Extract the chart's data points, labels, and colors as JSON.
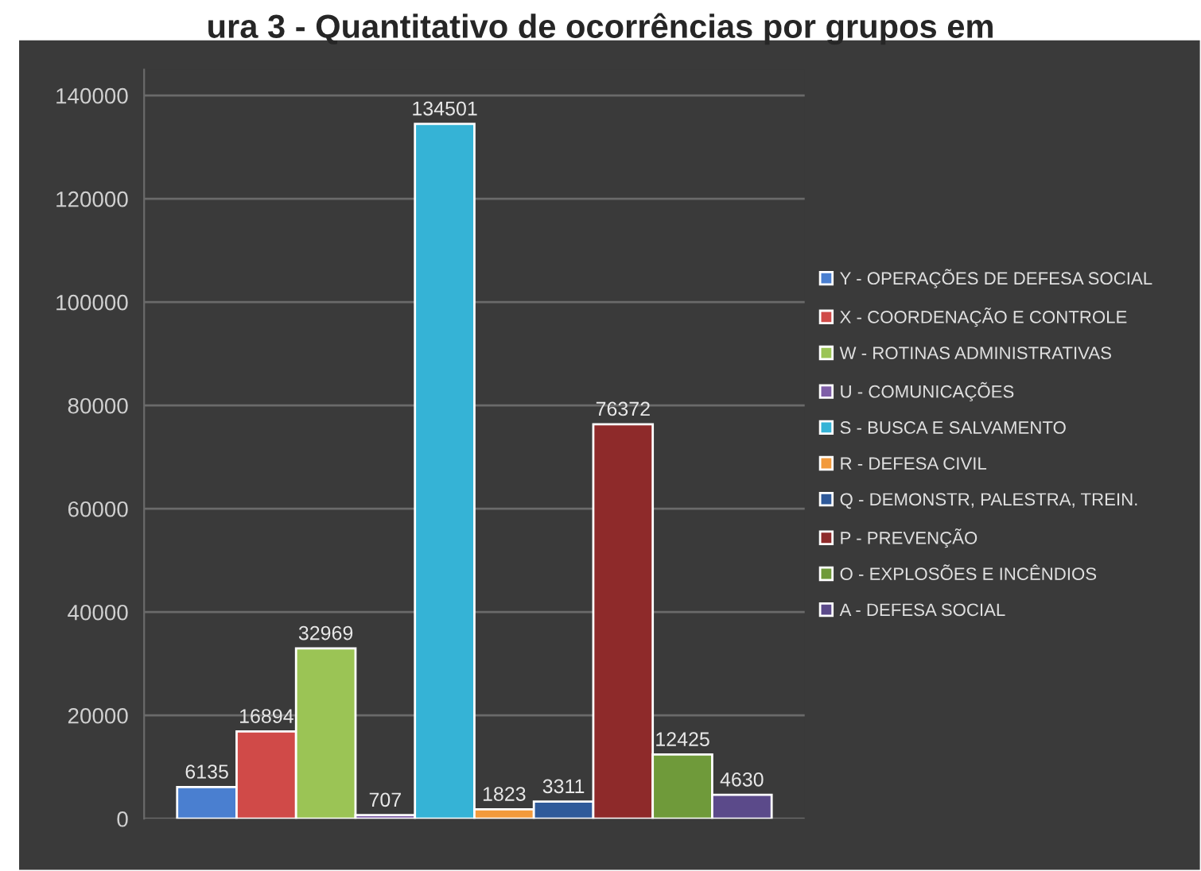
{
  "chart_data": {
    "type": "bar",
    "title": "ura 3 - Quantitativo de ocorrências por grupos em",
    "categories": [
      null
    ],
    "series": [
      {
        "name": "Y - OPERAÇÕES DE DEFESA SOCIAL",
        "color": "#4a7fd0",
        "values": [
          6135
        ]
      },
      {
        "name": "X - COORDENAÇÃO E CONTROLE",
        "color": "#d04a48",
        "values": [
          16894
        ]
      },
      {
        "name": "W - ROTINAS ADMINISTRATIVAS",
        "color": "#9bc455",
        "values": [
          32969
        ]
      },
      {
        "name": "U - COMUNICAÇÕES",
        "color": "#7f5fa8",
        "values": [
          707
        ]
      },
      {
        "name": "S - BUSCA E SALVAMENTO",
        "color": "#35b3d6",
        "values": [
          134501
        ]
      },
      {
        "name": "R - DEFESA CIVIL",
        "color": "#f29a3c",
        "values": [
          1823
        ]
      },
      {
        "name": "Q - DEMONSTR, PALESTRA, TREIN.",
        "color": "#2f5a9a",
        "values": [
          3311
        ]
      },
      {
        "name": "P - PREVENÇÃO",
        "color": "#8e2a2a",
        "values": [
          76372
        ]
      },
      {
        "name": "O - EXPLOSÕES E INCÊNDIOS",
        "color": "#6f9a3a",
        "values": [
          12425
        ]
      },
      {
        "name": "A - DEFESA SOCIAL",
        "color": "#5b4a8a",
        "values": [
          4630
        ]
      }
    ],
    "ylim": [
      0,
      145000
    ],
    "yticks": [
      0,
      20000,
      40000,
      60000,
      80000,
      100000,
      120000,
      140000
    ],
    "grid": "y",
    "legend": "right",
    "data_labels": true
  }
}
